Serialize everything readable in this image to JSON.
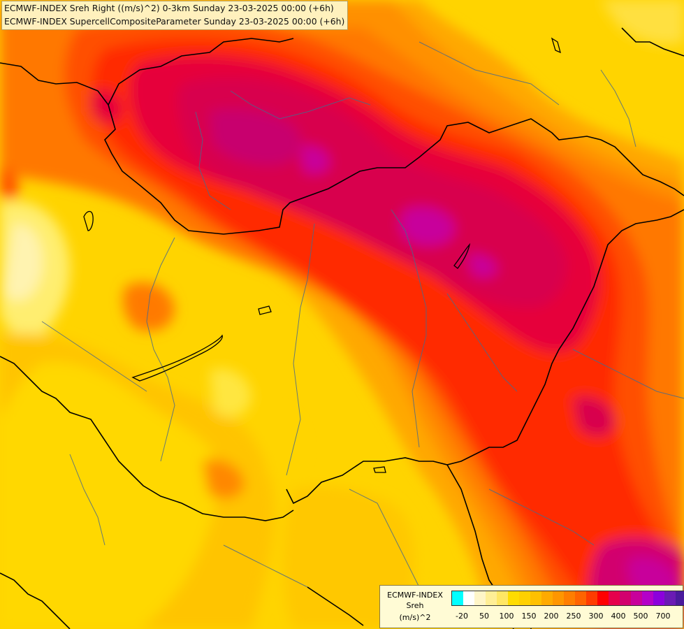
{
  "title_lines": [
    "ECMWF-INDEX Sreh Right ((m/s)^2) 0-3km Sunday 23-03-2025 00:00 (+6h)",
    "ECMWF-INDEX SupercellCompositeParameter Sunday 23-03-2025 00:00 (+6h)"
  ],
  "legend": {
    "model": "ECMWF-INDEX",
    "variable": "Sreh",
    "unit": "(m/s)^2",
    "colors": [
      "#00ffff",
      "#ffffff",
      "#fff5c8",
      "#ffee96",
      "#ffe664",
      "#ffdc00",
      "#ffd000",
      "#ffc000",
      "#ffaa00",
      "#ff9600",
      "#ff7e00",
      "#ff6400",
      "#ff3c00",
      "#ff0000",
      "#e6004c",
      "#d2006e",
      "#c8009b",
      "#b400c8",
      "#8c00dc",
      "#6a1ab4",
      "#4a1a9c",
      "#2a1a82",
      "#0a0a64"
    ],
    "tick_labels": [
      "-20",
      "50",
      "100",
      "150",
      "200",
      "250",
      "300",
      "400",
      "500",
      "700"
    ]
  }
}
